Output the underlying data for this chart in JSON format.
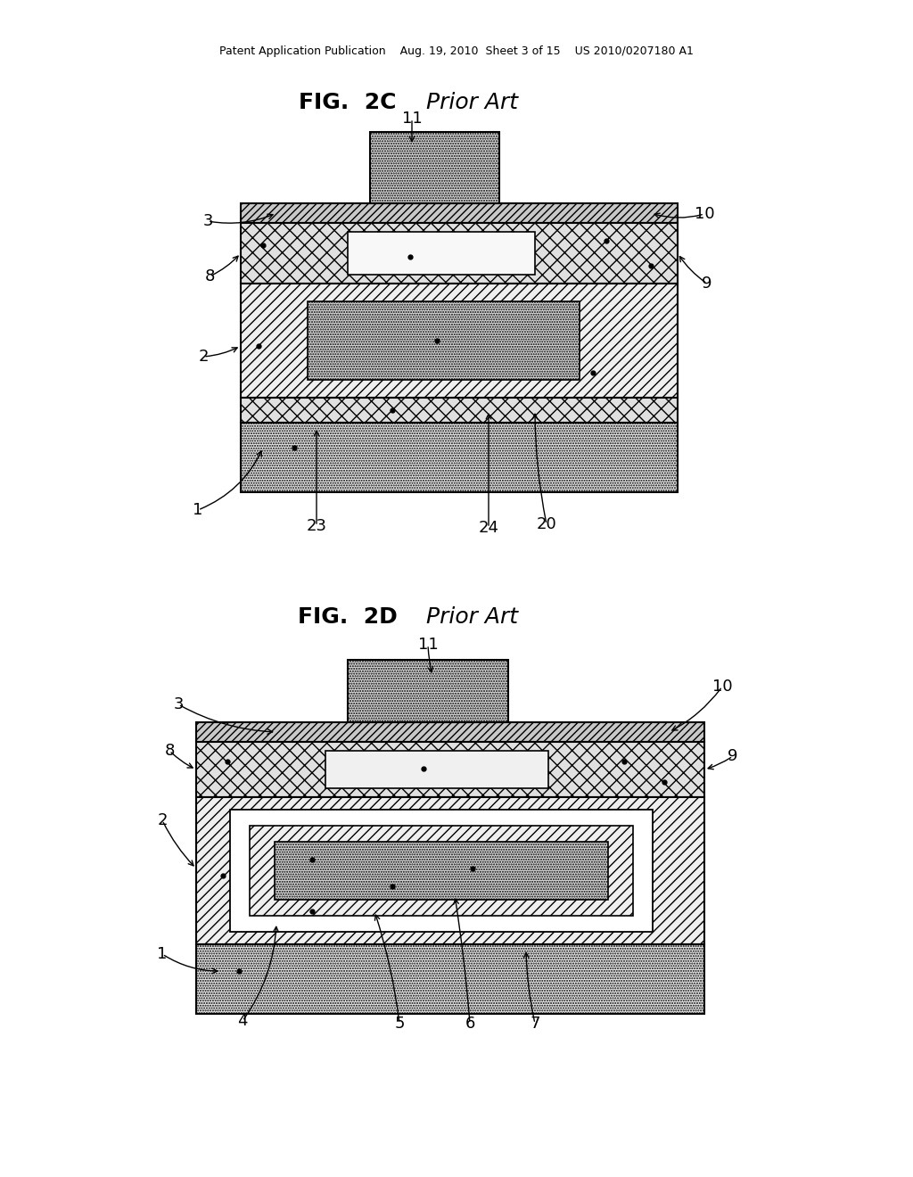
{
  "bg_color": "#ffffff",
  "header_text": "Patent Application Publication    Aug. 19, 2010  Sheet 3 of 15    US 2010/0207180 A1",
  "fig2c_title": "FIG.  2C",
  "fig2c_prior_art": "Prior Art",
  "fig2d_title": "FIG.  2D",
  "fig2d_prior_art": "Prior Art"
}
